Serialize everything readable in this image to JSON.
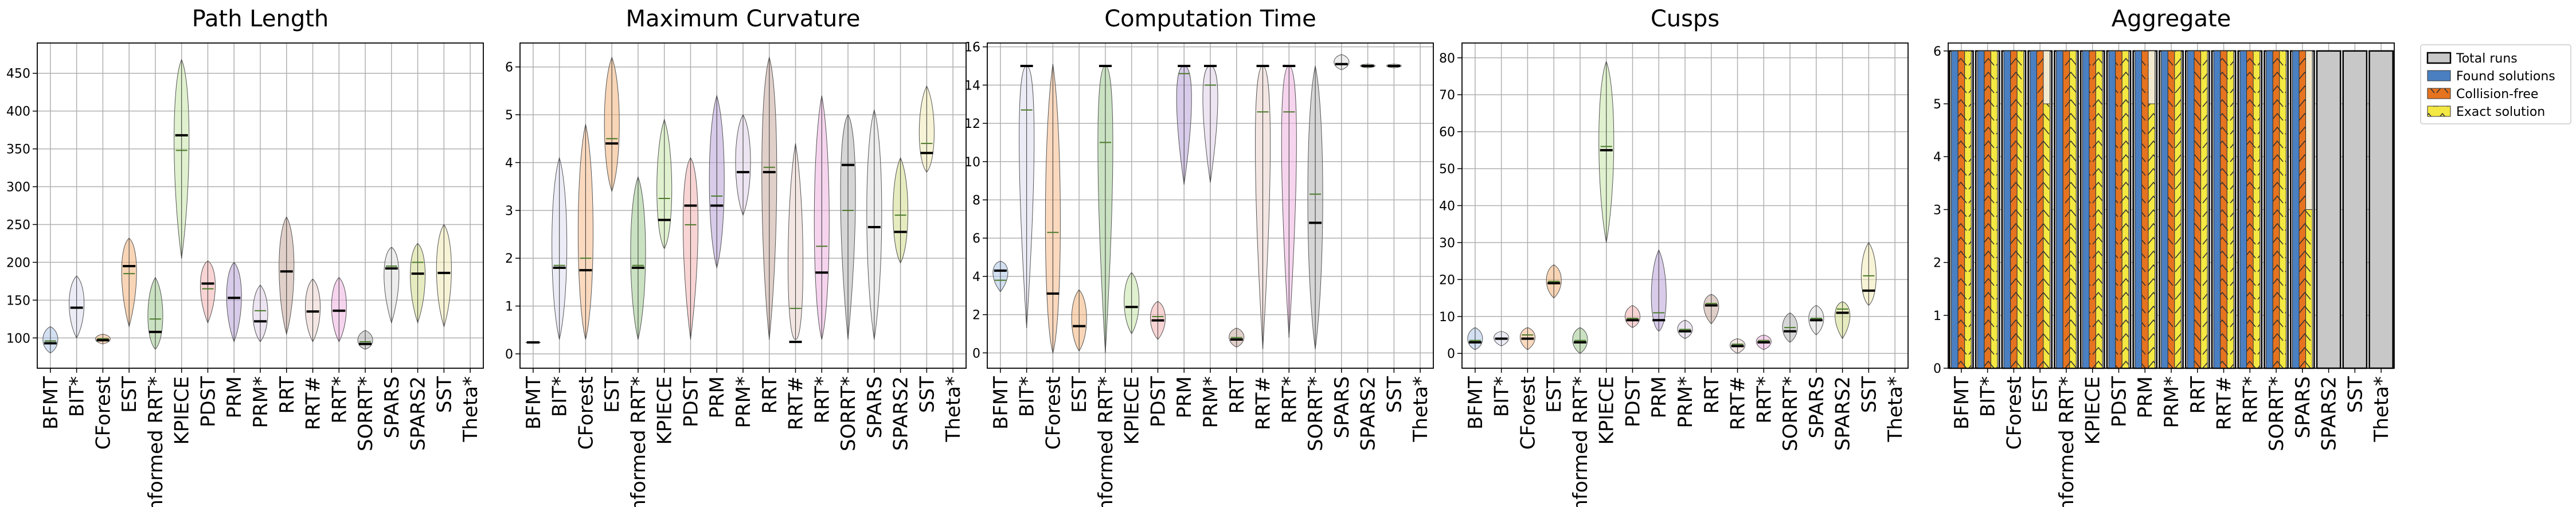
{
  "chart_data": [
    {
      "type": "violin",
      "title": "Path Length",
      "ylim": [
        60,
        490
      ],
      "yticks": [
        100,
        150,
        200,
        250,
        300,
        350,
        400,
        450
      ],
      "grid": true,
      "categories": [
        "BFMT",
        "BIT*",
        "CForest",
        "EST",
        "Informed RRT*",
        "KPIECE",
        "PDST",
        "PRM",
        "PRM*",
        "RRT",
        "RRT#",
        "RRT*",
        "SORRT*",
        "SPARS",
        "SPARS2",
        "SST",
        "Theta*"
      ],
      "series": [
        {
          "min": 80,
          "max": 115,
          "median": 93,
          "mean": 96
        },
        {
          "min": 100,
          "max": 182,
          "median": 140,
          "mean": 140
        },
        {
          "min": 92,
          "max": 105,
          "median": 97,
          "mean": 99
        },
        {
          "min": 115,
          "max": 232,
          "median": 195,
          "mean": 185
        },
        {
          "min": 85,
          "max": 180,
          "median": 108,
          "mean": 125
        },
        {
          "min": 205,
          "max": 468,
          "median": 368,
          "mean": 348
        },
        {
          "min": 120,
          "max": 202,
          "median": 172,
          "mean": 165
        },
        {
          "min": 95,
          "max": 200,
          "median": 153,
          "mean": 153
        },
        {
          "min": 95,
          "max": 170,
          "median": 122,
          "mean": 136
        },
        {
          "min": 105,
          "max": 260,
          "median": 188,
          "mean": 188
        },
        {
          "min": 95,
          "max": 178,
          "median": 135,
          "mean": 135
        },
        {
          "min": 95,
          "max": 180,
          "median": 136,
          "mean": 136
        },
        {
          "min": 85,
          "max": 110,
          "median": 92,
          "mean": 95
        },
        {
          "min": 120,
          "max": 220,
          "median": 192,
          "mean": 195
        },
        {
          "min": 120,
          "max": 225,
          "median": 185,
          "mean": 200
        },
        {
          "min": 115,
          "max": 250,
          "median": 186,
          "mean": 186
        },
        null
      ]
    },
    {
      "type": "violin",
      "title": "Maximum Curvature",
      "ylim": [
        -0.3,
        6.5
      ],
      "yticks": [
        0,
        1,
        2,
        3,
        4,
        5,
        6
      ],
      "grid": true,
      "categories": [
        "BFMT",
        "BIT*",
        "CForest",
        "EST",
        "Informed RRT*",
        "KPIECE",
        "PDST",
        "PRM",
        "PRM*",
        "RRT",
        "RRT#",
        "RRT*",
        "SORRT*",
        "SPARS",
        "SPARS2",
        "SST",
        "Theta*"
      ],
      "series": [
        {
          "min": 0.22,
          "max": 0.25,
          "median": 0.24,
          "mean": 0.24
        },
        {
          "min": 0.3,
          "max": 4.1,
          "median": 1.8,
          "mean": 1.85
        },
        {
          "min": 0.3,
          "max": 4.8,
          "median": 1.75,
          "mean": 2.0
        },
        {
          "min": 3.4,
          "max": 6.2,
          "median": 4.4,
          "mean": 4.5
        },
        {
          "min": 0.3,
          "max": 3.7,
          "median": 1.8,
          "mean": 1.85
        },
        {
          "min": 2.2,
          "max": 4.9,
          "median": 2.8,
          "mean": 3.25
        },
        {
          "min": 0.3,
          "max": 4.1,
          "median": 3.1,
          "mean": 2.7
        },
        {
          "min": 1.8,
          "max": 5.4,
          "median": 3.1,
          "mean": 3.3
        },
        {
          "min": 2.9,
          "max": 5.0,
          "median": 3.8,
          "mean": 3.8
        },
        {
          "min": 0.3,
          "max": 6.2,
          "median": 3.8,
          "mean": 3.9
        },
        {
          "min": 0.3,
          "max": 4.4,
          "median": 0.25,
          "mean": 0.95
        },
        {
          "min": 0.3,
          "max": 5.4,
          "median": 1.7,
          "mean": 2.25
        },
        {
          "min": 0.3,
          "max": 5.0,
          "median": 3.95,
          "mean": 3.0
        },
        {
          "min": 0.3,
          "max": 5.1,
          "median": 2.65,
          "mean": 2.65
        },
        {
          "min": 1.9,
          "max": 4.1,
          "median": 2.55,
          "mean": 2.9
        },
        {
          "min": 3.8,
          "max": 5.6,
          "median": 4.2,
          "mean": 4.4
        },
        null
      ]
    },
    {
      "type": "violin",
      "title": "Computation Time",
      "ylim": [
        -0.8,
        16.2
      ],
      "yticks": [
        0,
        2,
        4,
        6,
        8,
        10,
        12,
        14,
        16
      ],
      "grid": true,
      "categories": [
        "BFMT",
        "BIT*",
        "CForest",
        "EST",
        "Informed RRT*",
        "KPIECE",
        "PDST",
        "PRM",
        "PRM*",
        "RRT",
        "RRT#",
        "RRT*",
        "SORRT*",
        "SPARS",
        "SPARS2",
        "SST",
        "Theta*"
      ],
      "series": [
        {
          "min": 3.2,
          "max": 4.8,
          "median": 4.3,
          "mean": 3.8
        },
        {
          "min": 1.3,
          "max": 15.0,
          "median": 15.0,
          "mean": 12.7
        },
        {
          "min": 0.0,
          "max": 15.1,
          "median": 3.1,
          "mean": 6.3
        },
        {
          "min": 0.1,
          "max": 3.3,
          "median": 1.4,
          "mean": 1.4
        },
        {
          "min": 0.0,
          "max": 15.0,
          "median": 15.0,
          "mean": 11.0
        },
        {
          "min": 1.0,
          "max": 4.2,
          "median": 2.4,
          "mean": 2.4
        },
        {
          "min": 0.7,
          "max": 2.7,
          "median": 1.7,
          "mean": 1.9
        },
        {
          "min": 8.8,
          "max": 15.0,
          "median": 15.0,
          "mean": 14.6
        },
        {
          "min": 8.9,
          "max": 15.0,
          "median": 15.0,
          "mean": 14.0
        },
        {
          "min": 0.3,
          "max": 1.3,
          "median": 0.7,
          "mean": 0.8
        },
        {
          "min": 0.2,
          "max": 15.0,
          "median": 15.0,
          "mean": 12.6
        },
        {
          "min": 0.8,
          "max": 15.0,
          "median": 15.0,
          "mean": 12.6
        },
        {
          "min": 0.2,
          "max": 15.0,
          "median": 6.8,
          "mean": 8.3
        },
        {
          "min": 14.8,
          "max": 15.6,
          "median": 15.1,
          "mean": 15.1
        },
        {
          "min": 14.9,
          "max": 15.1,
          "median": 15.0,
          "mean": 15.0
        },
        {
          "min": 14.9,
          "max": 15.1,
          "median": 15.0,
          "mean": 15.0
        },
        null
      ]
    },
    {
      "type": "violin",
      "title": "Cusps",
      "ylim": [
        -4,
        84
      ],
      "yticks": [
        0,
        10,
        20,
        30,
        40,
        50,
        60,
        70,
        80
      ],
      "grid": true,
      "categories": [
        "BFMT",
        "BIT*",
        "CForest",
        "EST",
        "Informed RRT*",
        "KPIECE",
        "PDST",
        "PRM",
        "PRM*",
        "RRT",
        "RRT#",
        "RRT*",
        "SORRT*",
        "SPARS",
        "SPARS2",
        "SST",
        "Theta*"
      ],
      "series": [
        {
          "min": 1,
          "max": 7,
          "median": 3,
          "mean": 3.5
        },
        {
          "min": 2,
          "max": 6,
          "median": 4,
          "mean": 4
        },
        {
          "min": 1,
          "max": 7,
          "median": 4,
          "mean": 5
        },
        {
          "min": 15,
          "max": 24,
          "median": 19,
          "mean": 19.5
        },
        {
          "min": 0,
          "max": 7,
          "median": 3,
          "mean": 3.5
        },
        {
          "min": 30,
          "max": 79,
          "median": 55,
          "mean": 56
        },
        {
          "min": 7,
          "max": 13,
          "median": 9,
          "mean": 9.5
        },
        {
          "min": 6,
          "max": 28,
          "median": 9,
          "mean": 11
        },
        {
          "min": 4,
          "max": 9,
          "median": 6,
          "mean": 6.5
        },
        {
          "min": 8,
          "max": 16,
          "median": 13,
          "mean": 13.5
        },
        {
          "min": 0,
          "max": 4,
          "median": 2,
          "mean": 2.5
        },
        {
          "min": 1,
          "max": 5,
          "median": 3,
          "mean": 3.5
        },
        {
          "min": 3,
          "max": 11,
          "median": 6,
          "mean": 7
        },
        {
          "min": 5,
          "max": 13,
          "median": 9,
          "mean": 9.5
        },
        {
          "min": 4,
          "max": 14,
          "median": 11,
          "mean": 12
        },
        {
          "min": 13,
          "max": 30,
          "median": 17,
          "mean": 21
        },
        null
      ]
    },
    {
      "type": "bar",
      "title": "Aggregate",
      "ylim": [
        0,
        6.15
      ],
      "yticks": [
        0,
        1,
        2,
        3,
        4,
        5,
        6
      ],
      "grid": true,
      "categories": [
        "BFMT",
        "BIT*",
        "CForest",
        "EST",
        "Informed RRT*",
        "KPIECE",
        "PDST",
        "PRM",
        "PRM*",
        "RRT",
        "RRT#",
        "RRT*",
        "SORRT*",
        "SPARS",
        "SPARS2",
        "SST",
        "Theta*"
      ],
      "legend_position": "outside-right",
      "series": [
        {
          "name": "Total runs",
          "color": "#c8c8c8",
          "values": [
            6,
            6,
            6,
            6,
            6,
            6,
            6,
            6,
            6,
            6,
            6,
            6,
            6,
            6,
            6,
            6,
            6
          ]
        },
        {
          "name": "Found solutions",
          "color": "#4a7fc1",
          "values": [
            6,
            6,
            6,
            6,
            6,
            6,
            6,
            6,
            6,
            6,
            6,
            6,
            6,
            6,
            0,
            0,
            0
          ]
        },
        {
          "name": "Collision-free",
          "color": "#e5731f",
          "values": [
            6,
            6,
            6,
            6,
            6,
            6,
            6,
            6,
            6,
            6,
            6,
            6,
            6,
            6,
            0,
            0,
            0
          ]
        },
        {
          "name": "Exact solution",
          "color": "#f4e842",
          "values": [
            6,
            6,
            6,
            5,
            6,
            6,
            6,
            5,
            6,
            6,
            6,
            6,
            6,
            3,
            0,
            0,
            0
          ]
        }
      ]
    }
  ]
}
